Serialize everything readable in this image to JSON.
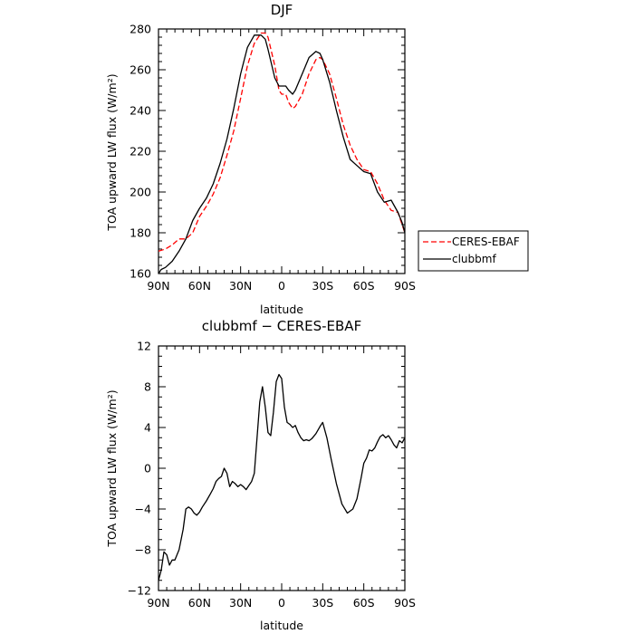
{
  "chart_data": [
    {
      "type": "line",
      "title": "DJF",
      "xlabel": "latitude",
      "ylabel": "TOA upward LW flux (W/m²)",
      "x_ticks": [
        "90N",
        "60N",
        "30N",
        "0",
        "30S",
        "60S",
        "90S"
      ],
      "xlim": [
        90,
        -90
      ],
      "ylim": [
        160,
        280
      ],
      "y_ticks": [
        "160",
        "180",
        "200",
        "220",
        "240",
        "260",
        "280"
      ],
      "legend": "right",
      "series": [
        {
          "name": "CERES-EBAF",
          "color": "#ff0000",
          "dash": "dashed",
          "x": [
            90,
            85,
            80,
            75,
            70,
            65,
            60,
            55,
            50,
            45,
            40,
            35,
            30,
            25,
            20,
            15,
            12,
            10,
            5,
            2,
            0,
            -3,
            -5,
            -8,
            -10,
            -15,
            -20,
            -25,
            -28,
            -30,
            -35,
            -40,
            -45,
            -50,
            -55,
            -60,
            -65,
            -70,
            -75,
            -80,
            -85,
            -90
          ],
          "y": [
            171,
            172,
            174,
            177,
            177,
            180,
            188,
            193,
            199,
            207,
            218,
            230,
            246,
            262,
            273,
            278,
            278,
            276,
            262,
            250,
            248,
            248,
            244,
            241,
            242,
            248,
            258,
            265,
            266,
            265,
            258,
            246,
            233,
            223,
            216,
            211,
            210,
            204,
            196,
            191,
            190,
            180
          ]
        },
        {
          "name": "clubbmf",
          "color": "#000000",
          "dash": "solid",
          "x": [
            90,
            88,
            85,
            80,
            75,
            70,
            65,
            60,
            55,
            50,
            45,
            40,
            35,
            30,
            25,
            20,
            15,
            12,
            10,
            5,
            2,
            0,
            -3,
            -5,
            -8,
            -10,
            -15,
            -20,
            -25,
            -28,
            -30,
            -35,
            -40,
            -45,
            -50,
            -55,
            -60,
            -65,
            -70,
            -75,
            -80,
            -85,
            -88,
            -90
          ],
          "y": [
            160,
            162,
            163,
            166,
            171,
            177,
            186,
            192,
            197,
            204,
            214,
            226,
            241,
            258,
            271,
            277,
            277,
            275,
            270,
            256,
            252,
            252,
            252,
            250,
            248,
            250,
            258,
            266,
            269,
            268,
            265,
            254,
            240,
            227,
            216,
            213,
            210,
            209,
            200,
            195,
            196,
            190,
            185,
            180
          ]
        }
      ]
    },
    {
      "type": "line",
      "title": "clubbmf − CERES-EBAF",
      "xlabel": "latitude",
      "ylabel": "TOA upward LW flux (W/m²)",
      "x_ticks": [
        "90N",
        "60N",
        "30N",
        "0",
        "30S",
        "60S",
        "90S"
      ],
      "xlim": [
        90,
        -90
      ],
      "ylim": [
        -12,
        12
      ],
      "y_ticks": [
        "−12",
        "−8",
        "−4",
        "0",
        "4",
        "8",
        "12"
      ],
      "series": [
        {
          "color": "#000000",
          "x": [
            90,
            88,
            86,
            84,
            82,
            80,
            78,
            75,
            72,
            70,
            68,
            66,
            64,
            62,
            60,
            58,
            55,
            52,
            50,
            48,
            46,
            44,
            42,
            40,
            38,
            36,
            34,
            32,
            30,
            28,
            26,
            24,
            22,
            20,
            18,
            16,
            14,
            12,
            10,
            8,
            6,
            4,
            2,
            0,
            -2,
            -4,
            -6,
            -8,
            -10,
            -12,
            -14,
            -16,
            -18,
            -20,
            -22,
            -25,
            -28,
            -30,
            -33,
            -36,
            -40,
            -44,
            -48,
            -52,
            -55,
            -58,
            -60,
            -62,
            -64,
            -66,
            -68,
            -70,
            -72,
            -74,
            -76,
            -78,
            -80,
            -82,
            -84,
            -86,
            -88,
            -90
          ],
          "y": [
            -11,
            -10,
            -8.2,
            -8.5,
            -9.5,
            -9,
            -9,
            -8,
            -6,
            -4,
            -3.8,
            -4,
            -4.4,
            -4.6,
            -4.3,
            -3.8,
            -3.2,
            -2.5,
            -2.0,
            -1.3,
            -1.0,
            -0.8,
            0.0,
            -0.5,
            -1.8,
            -1.3,
            -1.5,
            -1.8,
            -1.6,
            -1.8,
            -2.1,
            -1.7,
            -1.3,
            -0.5,
            3.0,
            6.5,
            8.0,
            6.0,
            3.5,
            3.2,
            5.5,
            8.5,
            9.2,
            8.8,
            6.0,
            4.5,
            4.3,
            4.0,
            4.2,
            3.5,
            3.0,
            2.7,
            2.8,
            2.7,
            2.9,
            3.4,
            4.1,
            4.5,
            3.0,
            1.0,
            -1.5,
            -3.5,
            -4.4,
            -4.0,
            -3.0,
            -1.0,
            0.5,
            1.0,
            1.8,
            1.7,
            2.0,
            2.6,
            3.1,
            3.3,
            3.0,
            3.2,
            2.8,
            2.3,
            2.0,
            2.7,
            2.5,
            3.0
          ]
        }
      ]
    }
  ]
}
